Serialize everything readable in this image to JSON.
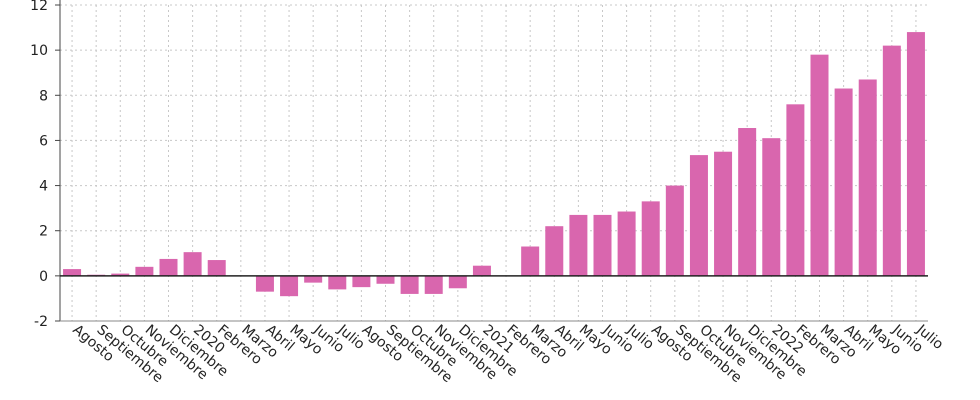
{
  "chart_data": {
    "type": "bar",
    "categories": [
      "Agosto",
      "Septiembre",
      "Octubre",
      "Noviembre",
      "Diciembre",
      "2020",
      "Febrero",
      "Marzo",
      "Abril",
      "Mayo",
      "Junio",
      "Julio",
      "Agosto",
      "Septiembre",
      "Octubre",
      "Noviembre",
      "Diciembre",
      "2021",
      "Febrero",
      "Marzo",
      "Abril",
      "Mayo",
      "Junio",
      "Julio",
      "Agosto",
      "Septiembre",
      "Octubre",
      "Noviembre",
      "Diciembre",
      "2022",
      "Febrero",
      "Marzo",
      "Abril",
      "Mayo",
      "Junio",
      "Julio"
    ],
    "values": [
      0.3,
      0.05,
      0.1,
      0.4,
      0.75,
      1.05,
      0.7,
      0.0,
      -0.7,
      -0.9,
      -0.3,
      -0.6,
      -0.5,
      -0.35,
      -0.8,
      -0.8,
      -0.55,
      0.45,
      0.0,
      1.3,
      2.2,
      2.7,
      2.7,
      2.85,
      3.3,
      4.0,
      5.35,
      5.5,
      6.55,
      6.1,
      7.6,
      9.8,
      8.3,
      8.7,
      10.2,
      10.8
    ],
    "yticks": [
      -2,
      0,
      2,
      4,
      6,
      8,
      10,
      12
    ],
    "ylim": [
      -2,
      12
    ],
    "grid": true,
    "bar_color": "#d966ae",
    "zero_line_color": "#222222",
    "grid_color": "#c8c8c8"
  }
}
